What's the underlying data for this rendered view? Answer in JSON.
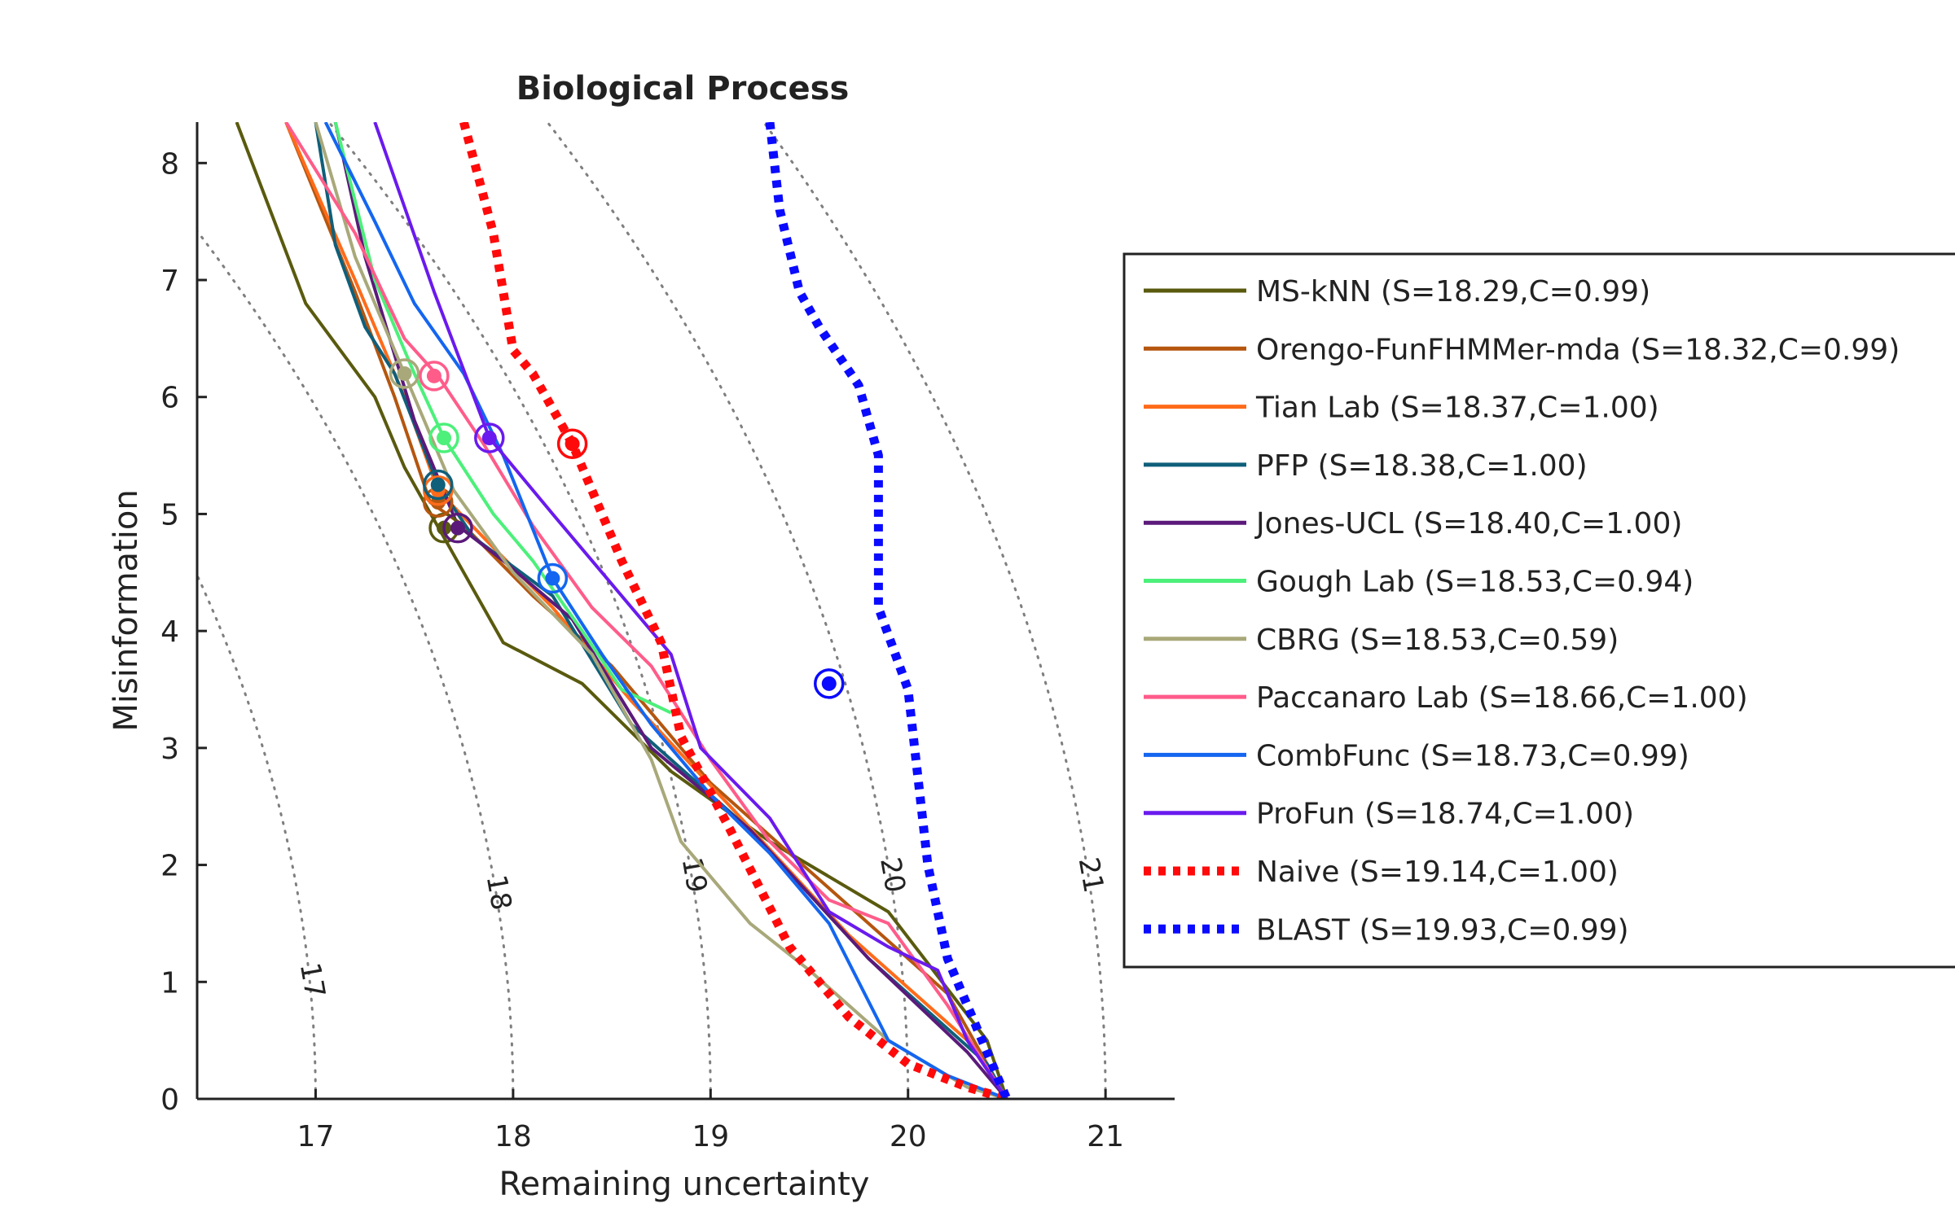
{
  "chart_data": {
    "type": "line",
    "title": "Biological Process",
    "xlabel": "Remaining uncertainty",
    "ylabel": "Misinformation",
    "xlim": [
      16.4,
      21.35
    ],
    "ylim": [
      0,
      8.35
    ],
    "xticks": [
      "17",
      "18",
      "19",
      "20",
      "21"
    ],
    "yticks": [
      "0",
      "1",
      "2",
      "3",
      "4",
      "5",
      "6",
      "7",
      "8"
    ],
    "grid": false,
    "legend_position": "right",
    "contours": {
      "levels": [
        16,
        17,
        18,
        19,
        20,
        21
      ],
      "labels": [
        "17",
        "18",
        "19",
        "20",
        "21"
      ],
      "color": "#7f7f7f"
    },
    "series": [
      {
        "name": "MS-kNN (S=18.29,C=0.99)",
        "color": "#5a5a0f",
        "style": "solid",
        "x": [
          16.6,
          16.95,
          17.3,
          17.45,
          17.65,
          17.95,
          18.35,
          18.8,
          19.3,
          19.9,
          20.4,
          20.5
        ],
        "y": [
          8.35,
          6.8,
          6.0,
          5.4,
          4.8,
          3.9,
          3.55,
          2.8,
          2.2,
          1.6,
          0.5,
          0.0
        ],
        "marker": [
          17.65,
          4.88
        ]
      },
      {
        "name": "Orengo-FunFHMMer-mda (S=18.32,C=0.99)",
        "color": "#b5560f",
        "style": "solid",
        "x": [
          16.85,
          17.2,
          17.4,
          17.58,
          17.75,
          18.1,
          18.5,
          19.0,
          19.6,
          20.2,
          20.5
        ],
        "y": [
          8.35,
          6.9,
          6.0,
          5.1,
          4.9,
          4.3,
          3.7,
          2.7,
          1.8,
          0.9,
          0.0
        ],
        "marker": [
          17.62,
          5.1
        ]
      },
      {
        "name": "Tian Lab (S=18.37,C=1.00)",
        "color": "#ff6b1a",
        "style": "solid",
        "x": [
          16.85,
          17.2,
          17.45,
          17.62,
          17.85,
          18.2,
          18.6,
          19.1,
          19.7,
          20.3,
          20.5
        ],
        "y": [
          8.35,
          7.0,
          6.0,
          5.2,
          4.8,
          4.2,
          3.4,
          2.5,
          1.4,
          0.5,
          0.0
        ],
        "marker": [
          17.62,
          5.2
        ]
      },
      {
        "name": "PFP (S=18.38,C=1.00)",
        "color": "#0f5f7a",
        "style": "solid",
        "x": [
          17.0,
          17.1,
          17.25,
          17.4,
          17.62,
          17.8,
          18.2,
          18.6,
          19.2,
          19.8,
          20.4,
          20.5
        ],
        "y": [
          8.35,
          7.3,
          6.6,
          6.2,
          5.25,
          4.8,
          4.3,
          3.2,
          2.3,
          1.2,
          0.3,
          0.0
        ],
        "marker": [
          17.62,
          5.25
        ]
      },
      {
        "name": "Jones-UCL (S=18.40,C=1.00)",
        "color": "#5b1a7a",
        "style": "solid",
        "x": [
          17.1,
          17.25,
          17.5,
          17.72,
          17.95,
          18.3,
          18.7,
          19.2,
          19.8,
          20.3,
          20.5
        ],
        "y": [
          8.35,
          7.2,
          5.8,
          4.9,
          4.6,
          4.1,
          3.0,
          2.3,
          1.2,
          0.4,
          0.0
        ],
        "marker": [
          17.72,
          4.88
        ]
      },
      {
        "name": "Gough Lab (S=18.53,C=0.94)",
        "color": "#4cf07a",
        "style": "solid",
        "x": [
          17.1,
          17.3,
          17.5,
          17.65,
          17.9,
          18.1,
          18.35,
          18.55,
          18.8
        ],
        "y": [
          8.35,
          7.0,
          6.2,
          5.65,
          5.0,
          4.6,
          4.0,
          3.5,
          3.3
        ],
        "marker": [
          17.65,
          5.65
        ]
      },
      {
        "name": "CBRG (S=18.53,C=0.59)",
        "color": "#a8a87a",
        "style": "solid",
        "x": [
          17.0,
          17.2,
          17.45,
          17.7,
          18.0,
          18.4,
          18.7,
          18.85,
          19.2,
          19.5,
          19.9,
          20.3,
          20.5
        ],
        "y": [
          8.35,
          7.2,
          6.2,
          5.2,
          4.5,
          3.8,
          2.9,
          2.2,
          1.5,
          1.1,
          0.5,
          0.1,
          0.0
        ],
        "marker": [
          17.45,
          6.2
        ]
      },
      {
        "name": "Paccanaro Lab (S=18.66,C=1.00)",
        "color": "#ff5c8a",
        "style": "solid",
        "x": [
          16.85,
          17.2,
          17.45,
          17.62,
          17.85,
          18.1,
          18.4,
          18.7,
          19.0,
          19.3,
          19.6,
          19.9,
          20.2,
          20.5
        ],
        "y": [
          8.35,
          7.4,
          6.5,
          6.18,
          5.6,
          4.9,
          4.2,
          3.7,
          2.9,
          2.2,
          1.7,
          1.5,
          0.8,
          0.0
        ],
        "marker": [
          17.6,
          6.18
        ]
      },
      {
        "name": "CombFunc (S=18.73,C=0.99)",
        "color": "#1466f0",
        "style": "solid",
        "x": [
          17.05,
          17.3,
          17.5,
          17.75,
          17.95,
          18.2,
          18.45,
          18.7,
          19.0,
          19.3,
          19.6,
          19.9,
          20.2,
          20.5
        ],
        "y": [
          8.35,
          7.5,
          6.8,
          6.2,
          5.5,
          4.45,
          3.8,
          3.2,
          2.6,
          2.1,
          1.5,
          0.5,
          0.2,
          0.0
        ],
        "marker": [
          18.2,
          4.45
        ]
      },
      {
        "name": "ProFun (S=18.74,C=1.00)",
        "color": "#6a1aee",
        "style": "solid",
        "x": [
          17.3,
          17.6,
          17.88,
          18.2,
          18.5,
          18.8,
          18.95,
          19.3,
          19.6,
          19.9,
          20.15,
          20.3,
          20.5
        ],
        "y": [
          8.35,
          6.9,
          5.65,
          5.0,
          4.4,
          3.8,
          3.0,
          2.4,
          1.6,
          1.3,
          1.1,
          0.5,
          0.0
        ],
        "marker": [
          17.88,
          5.65
        ]
      },
      {
        "name": "Naive (S=19.14,C=1.00)",
        "color": "#ff0a0a",
        "style": "dotted",
        "x": [
          17.75,
          17.9,
          18.0,
          18.1,
          18.3,
          18.55,
          18.75,
          18.85,
          19.1,
          19.4,
          19.7,
          20.0,
          20.3,
          20.5
        ],
        "y": [
          8.35,
          7.4,
          6.4,
          6.2,
          5.6,
          4.6,
          3.9,
          3.1,
          2.3,
          1.3,
          0.7,
          0.3,
          0.1,
          0.0
        ],
        "marker": [
          18.3,
          5.6
        ]
      },
      {
        "name": "BLAST (S=19.93,C=0.99)",
        "color": "#0a0aff",
        "style": "dotted",
        "x": [
          19.3,
          19.35,
          19.45,
          19.55,
          19.75,
          19.85,
          19.85,
          20.0,
          20.1,
          20.2,
          20.4,
          20.5
        ],
        "y": [
          8.35,
          7.6,
          6.9,
          6.6,
          6.1,
          5.5,
          4.2,
          3.5,
          2.0,
          1.2,
          0.4,
          0.0
        ],
        "marker": [
          19.6,
          3.55
        ]
      }
    ]
  }
}
